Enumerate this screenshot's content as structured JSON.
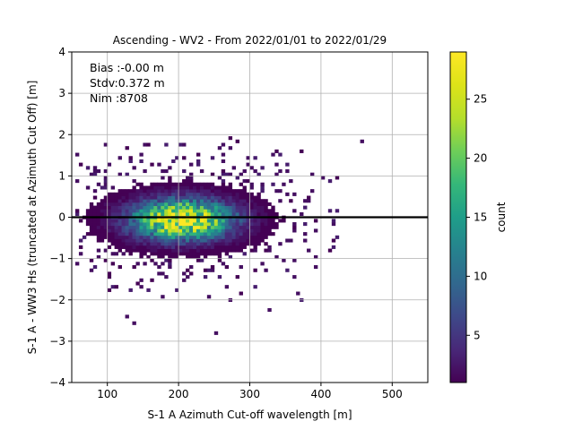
{
  "chart_data": {
    "type": "heatmap",
    "title": "Ascending - WV2 - From 2022/01/01 to 2022/01/29",
    "xlabel": "S-1 A Azimuth Cut-off wavelength [m]",
    "ylabel": "S-1 A - WW3 Hs (truncated at Azimuth Cut Off) [m]",
    "xlim": [
      50,
      550
    ],
    "ylim": [
      -4,
      4
    ],
    "x_ticks": [
      100,
      200,
      300,
      400,
      500
    ],
    "y_ticks": [
      -4,
      -3,
      -2,
      -1,
      0,
      1,
      2,
      3,
      4
    ],
    "grid": true,
    "stats": {
      "bias": "Bias :-0.00 m",
      "stdv": "Stdv:0.372 m",
      "nim": "Nim :8708"
    },
    "reference_line_y": 0,
    "colorbar": {
      "label": "count",
      "range": [
        1,
        29
      ],
      "ticks": [
        5,
        10,
        15,
        20,
        25
      ],
      "colormap": "viridis"
    },
    "density": {
      "count_total": 8708,
      "peak_count": 29,
      "center_x": 205,
      "center_y": -0.05,
      "sd_x": 60,
      "sd_y": 0.372
    }
  }
}
